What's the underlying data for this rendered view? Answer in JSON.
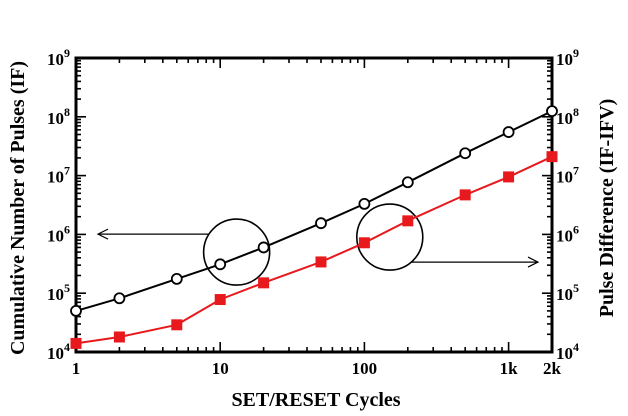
{
  "chart_data": {
    "type": "line",
    "xlabel": "SET/RESET Cycles",
    "ylabel_left": "Cumulative Number of Pulses (IF)",
    "ylabel_right": "Pulse Difference (IF-IFV)",
    "x_scale": "log",
    "y_scale": "log",
    "xlim": [
      1,
      2000
    ],
    "ylim": [
      10000,
      1000000000
    ],
    "x_ticks": [
      {
        "value": 1,
        "label": "1"
      },
      {
        "value": 10,
        "label": "10"
      },
      {
        "value": 100,
        "label": "100"
      },
      {
        "value": 1000,
        "label": "1k"
      },
      {
        "value": 2000,
        "label": "2k"
      }
    ],
    "y_ticks": [
      {
        "value": 10000,
        "base": "10",
        "exp": "4"
      },
      {
        "value": 100000,
        "base": "10",
        "exp": "5"
      },
      {
        "value": 1000000,
        "base": "10",
        "exp": "6"
      },
      {
        "value": 10000000,
        "base": "10",
        "exp": "7"
      },
      {
        "value": 100000000,
        "base": "10",
        "exp": "8"
      },
      {
        "value": 1000000000,
        "base": "10",
        "exp": "9"
      }
    ],
    "grid": false,
    "series": [
      {
        "axis": "left",
        "color": "#000000",
        "marker": "open-circle",
        "x": [
          1,
          2,
          5,
          10,
          20,
          50,
          100,
          200,
          500,
          1000,
          2000
        ],
        "y": [
          50000,
          82000,
          175000,
          310000,
          600000,
          1550000,
          3300000,
          7700000,
          24000000,
          55000000,
          125000000
        ]
      },
      {
        "axis": "right",
        "color": "#e8191c",
        "marker": "filled-square",
        "x": [
          1,
          2,
          5,
          10,
          20,
          50,
          100,
          200,
          500,
          1000,
          2000
        ],
        "y": [
          14000,
          18000,
          29000,
          78000,
          150000,
          340000,
          720000,
          1700000,
          4700000,
          9500000,
          21000000
        ]
      }
    ],
    "annotations": [
      {
        "type": "circle",
        "at_x": 13,
        "at_y": 500000,
        "arrow_direction": "left",
        "target_axis": "left"
      },
      {
        "type": "circle",
        "at_x": 150,
        "at_y": 900000,
        "arrow_direction": "right",
        "target_axis": "right"
      }
    ]
  }
}
